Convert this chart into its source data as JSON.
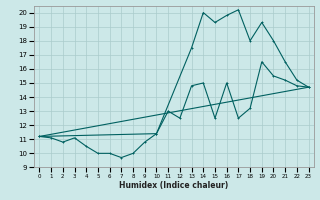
{
  "xlabel": "Humidex (Indice chaleur)",
  "bg_color": "#cce8e8",
  "grid_color": "#aacccc",
  "line_color": "#006060",
  "xlim": [
    -0.5,
    23.5
  ],
  "ylim": [
    9,
    20.5
  ],
  "xticks": [
    0,
    1,
    2,
    3,
    4,
    5,
    6,
    7,
    8,
    9,
    10,
    11,
    12,
    13,
    14,
    15,
    16,
    17,
    18,
    19,
    20,
    21,
    22,
    23
  ],
  "yticks": [
    9,
    10,
    11,
    12,
    13,
    14,
    15,
    16,
    17,
    18,
    19,
    20
  ],
  "line1_x": [
    0,
    1,
    2,
    3,
    4,
    5,
    6,
    7,
    8,
    9,
    10,
    11,
    12,
    13,
    14,
    15,
    16,
    17,
    18,
    19,
    20,
    21,
    22,
    23
  ],
  "line1_y": [
    11.2,
    11.1,
    10.8,
    11.1,
    10.5,
    10.0,
    10.0,
    9.7,
    10.0,
    10.8,
    11.4,
    13.0,
    12.5,
    14.8,
    15.0,
    12.5,
    15.0,
    12.5,
    13.2,
    16.5,
    15.5,
    15.2,
    14.8,
    14.7
  ],
  "line2_x": [
    0,
    10,
    13,
    14,
    15,
    16,
    17,
    18,
    19,
    20,
    21,
    22,
    23
  ],
  "line2_y": [
    11.2,
    11.4,
    17.5,
    20.0,
    19.3,
    19.8,
    20.2,
    18.0,
    19.3,
    18.0,
    16.5,
    15.2,
    14.7
  ],
  "line3_x": [
    0,
    23
  ],
  "line3_y": [
    11.2,
    14.7
  ]
}
